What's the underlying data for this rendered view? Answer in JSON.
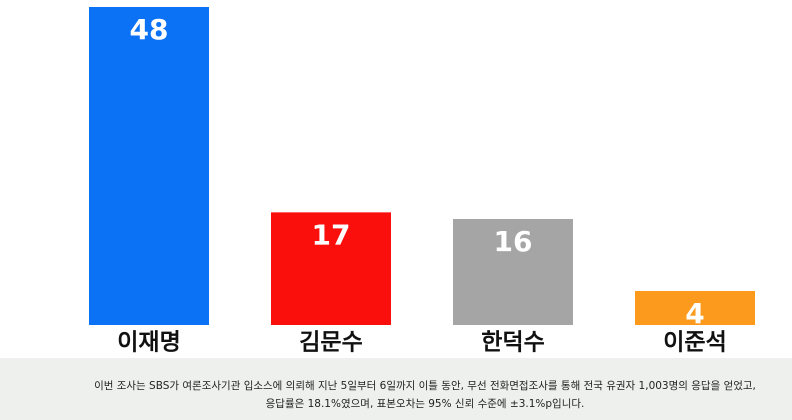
{
  "chart_data": {
    "type": "bar",
    "categories": [
      "이재명",
      "김문수",
      "한덕수",
      "이준석"
    ],
    "values": [
      48,
      17,
      16,
      4
    ],
    "colors": [
      "#0b72f5",
      "#fa0f0c",
      "#a5a5a5",
      "#fb9a1c"
    ],
    "footnote": [
      "이번 조사는 SBS가 여론조사기관 입소스에 의뢰해 지난 5일부터 6일까지 이틀 동안, 무선 전화면접조사를 통해 전국 유권자 1,003명의 응답을 얻었고,",
      "응답률은 18.1%였으며, 표본오차는 95% 신뢰 수준에 ±3.1%p입니다."
    ]
  }
}
